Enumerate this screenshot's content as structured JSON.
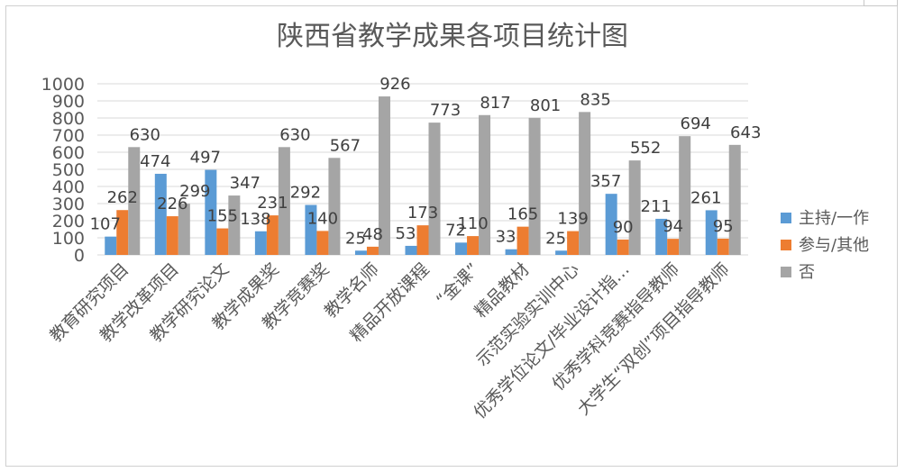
{
  "chart_data": {
    "type": "bar",
    "title": "陕西省教学成果各项目统计图",
    "xlabel": "",
    "ylabel": "",
    "ylim": [
      0,
      1000
    ],
    "yticks": [
      0,
      100,
      200,
      300,
      400,
      500,
      600,
      700,
      800,
      900,
      1000
    ],
    "grid": true,
    "legend_position": "right",
    "categories": [
      "教育研究项目",
      "教学改革项目",
      "教学研究论文",
      "教学成果奖",
      "教学竞赛奖",
      "教学名师",
      "精品开放课程",
      "“金课”",
      "精品教材",
      "示范实验实训中心",
      "优秀学位论文/毕业设计指…",
      "优秀学科竞赛指导教师",
      "大学生“双创”项目指导教师"
    ],
    "series": [
      {
        "name": "主持/一作",
        "color": "#5b9bd5",
        "values": [
          107,
          474,
          497,
          138,
          292,
          25,
          53,
          72,
          33,
          25,
          357,
          211,
          261
        ]
      },
      {
        "name": "参与/其他",
        "color": "#ed7d31",
        "values": [
          262,
          226,
          155,
          231,
          140,
          48,
          173,
          110,
          165,
          139,
          90,
          94,
          95
        ]
      },
      {
        "name": "否",
        "color": "#a5a5a5",
        "values": [
          630,
          299,
          347,
          630,
          567,
          926,
          773,
          817,
          801,
          835,
          552,
          694,
          643
        ]
      }
    ]
  }
}
